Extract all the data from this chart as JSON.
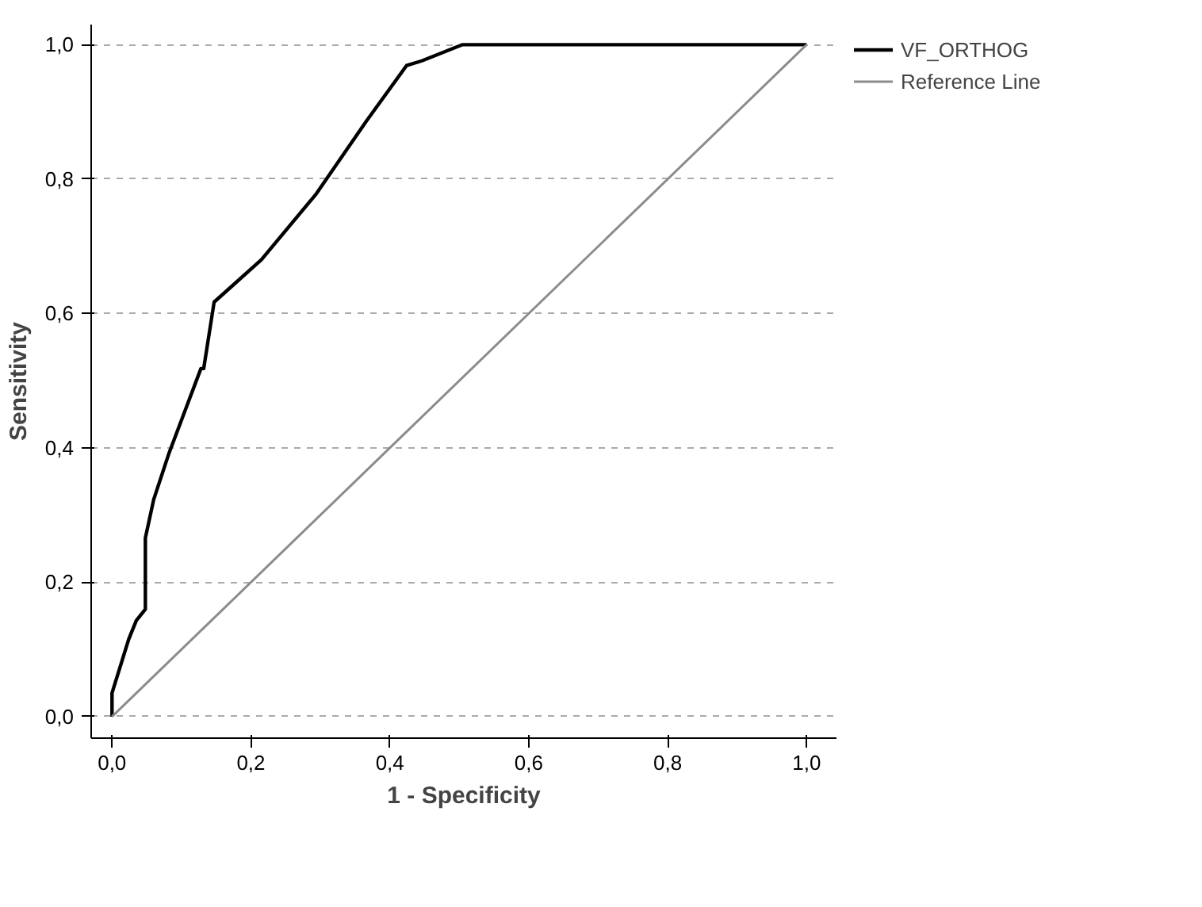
{
  "chart_data": {
    "type": "line",
    "xlabel": "1 - Specificity",
    "ylabel": "Sensitivity",
    "series": [
      {
        "name": "VF_ORTHOG",
        "color": "#000000",
        "x": [
          0,
          0,
          0.024,
          0.035,
          0.048,
          0.048,
          0.06,
          0.082,
          0.128,
          0.132,
          0.147,
          0.215,
          0.294,
          0.366,
          0.424,
          0.446,
          0.504,
          1.0
        ],
        "values": [
          0,
          0.035,
          0.115,
          0.143,
          0.16,
          0.266,
          0.323,
          0.392,
          0.518,
          0.518,
          0.617,
          0.68,
          0.778,
          0.886,
          0.969,
          0.976,
          1.0,
          1.0
        ]
      },
      {
        "name": "Reference Line",
        "color": "#8c8c8c",
        "x": [
          0,
          1
        ],
        "values": [
          0,
          1
        ]
      }
    ],
    "xlim": [
      -0.03,
      1.043
    ],
    "ylim": [
      -0.032,
      1.03
    ],
    "xticks": [
      {
        "value": 0,
        "label": "0,0"
      },
      {
        "value": 0.2,
        "label": "0,2"
      },
      {
        "value": 0.4,
        "label": "0,4"
      },
      {
        "value": 0.6,
        "label": "0,6"
      },
      {
        "value": 0.8,
        "label": "0,8"
      },
      {
        "value": 1,
        "label": "1,0"
      }
    ],
    "yticks": [
      {
        "value": 0,
        "label": "0,0"
      },
      {
        "value": 0.2,
        "label": "0,2"
      },
      {
        "value": 0.4,
        "label": "0,4"
      },
      {
        "value": 0.6,
        "label": "0,6"
      },
      {
        "value": 0.8,
        "label": "0,8"
      },
      {
        "value": 1,
        "label": "1,0"
      }
    ],
    "grid": "y",
    "legend": "top right",
    "line_style": "solid",
    "marker": "none"
  }
}
